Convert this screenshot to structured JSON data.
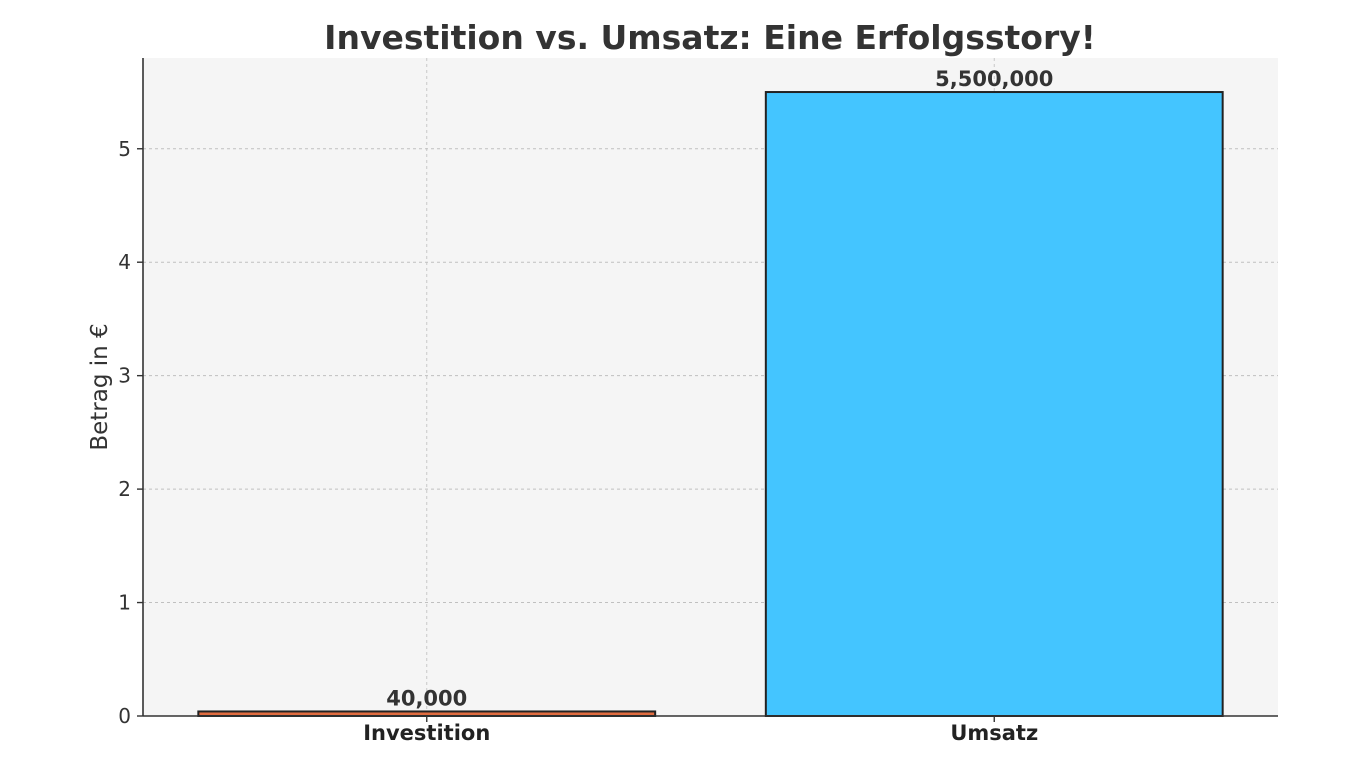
{
  "chart_data": {
    "type": "bar",
    "title": "Investition vs. Umsatz: Eine Erfolgsstory!",
    "xlabel": "",
    "ylabel": "Betrag in €",
    "categories": [
      "Investition",
      "Umsatz"
    ],
    "values": [
      40000,
      5500000
    ],
    "value_labels": [
      "40,000",
      "5,500,000"
    ],
    "y_ticks": [
      "0",
      "1",
      "2",
      "3",
      "4",
      "5"
    ],
    "ylim": [
      0,
      5800000
    ],
    "y_tick_unit": 1000000,
    "grid": true,
    "legend": "none",
    "bar_colors": [
      "#e06c40",
      "#44c5ff"
    ],
    "bar_edge_color": "#222222",
    "plot_background": "#f5f5f5"
  }
}
